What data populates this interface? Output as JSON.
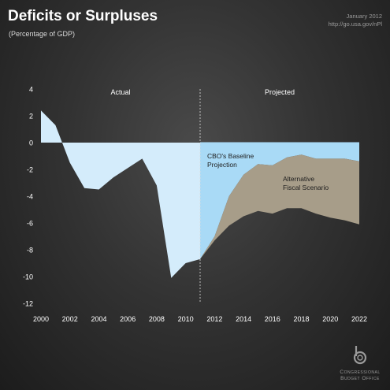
{
  "header": {
    "title": "Deficits or Surpluses",
    "subtitle": "(Percentage of GDP)",
    "date": "January 2012",
    "link": "http://go.usa.gov/nPl"
  },
  "footer": {
    "logo_line1": "Congressional",
    "logo_line2": "Budget Office"
  },
  "colors": {
    "baseline_fill": "#a9daf6",
    "alternative_fill": "#a79d89",
    "actual_fill": "#d4ecfb",
    "divider": "#dddddd"
  },
  "chart_data": {
    "type": "area",
    "title": "Deficits or Surpluses",
    "ylabel": "(Percentage of GDP)",
    "xlim": [
      2000,
      2022
    ],
    "ylim": [
      -12,
      4
    ],
    "x_ticks": [
      2000,
      2002,
      2004,
      2006,
      2008,
      2010,
      2012,
      2014,
      2016,
      2018,
      2020,
      2022
    ],
    "y_ticks": [
      4,
      2,
      0,
      -2,
      -4,
      -6,
      -8,
      -10,
      -12
    ],
    "divider_x": 2011,
    "region_labels": {
      "actual": "Actual",
      "projected": "Projected"
    },
    "series": [
      {
        "name": "Actual",
        "x": [
          2000,
          2001,
          2002,
          2003,
          2004,
          2005,
          2006,
          2007,
          2008,
          2009,
          2010,
          2011
        ],
        "values": [
          2.4,
          1.3,
          -1.5,
          -3.4,
          -3.5,
          -2.6,
          -1.9,
          -1.2,
          -3.2,
          -10.1,
          -9.0,
          -8.7
        ]
      },
      {
        "name": "CBO's Baseline Projection",
        "label_lines": [
          "CBO's Baseline",
          "Projection"
        ],
        "x": [
          2011,
          2012,
          2013,
          2014,
          2015,
          2016,
          2017,
          2018,
          2019,
          2020,
          2021,
          2022
        ],
        "values": [
          -8.7,
          -7.0,
          -4.0,
          -2.4,
          -1.6,
          -1.7,
          -1.1,
          -0.9,
          -1.2,
          -1.2,
          -1.2,
          -1.4
        ]
      },
      {
        "name": "Alternative Fiscal Scenario",
        "label_lines": [
          "Alternative",
          "Fiscal Scenario"
        ],
        "x": [
          2011,
          2012,
          2013,
          2014,
          2015,
          2016,
          2017,
          2018,
          2019,
          2020,
          2021,
          2022
        ],
        "values": [
          -8.7,
          -7.3,
          -6.2,
          -5.5,
          -5.1,
          -5.3,
          -4.9,
          -4.9,
          -5.3,
          -5.6,
          -5.8,
          -6.1
        ]
      }
    ]
  }
}
